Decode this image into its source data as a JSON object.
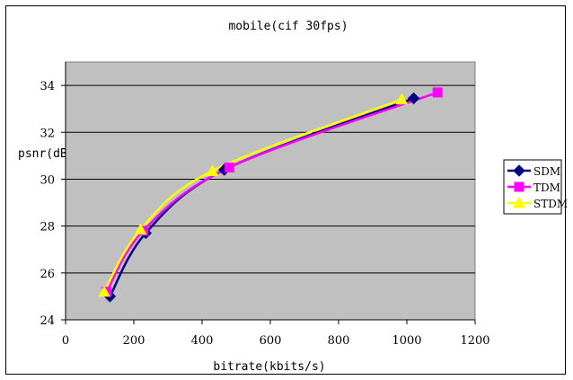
{
  "chart_data": {
    "type": "line",
    "title": "mobile(cif 30fps)",
    "xlabel": "bitrate(kbits/s)",
    "ylabel": "psnr(dB)",
    "xlim": [
      0,
      1200
    ],
    "ylim": [
      24,
      35
    ],
    "x_ticks": [
      0,
      200,
      400,
      600,
      800,
      1000,
      1200
    ],
    "y_ticks": [
      24,
      26,
      28,
      30,
      32,
      34
    ],
    "grid": "horizontal",
    "plot_background": "#c0c0c0",
    "legend_position": "right",
    "series": [
      {
        "name": "SDM",
        "color": "#000080",
        "marker": "diamond",
        "points": [
          [
            130,
            25.0
          ],
          [
            235,
            27.7
          ],
          [
            465,
            30.4
          ],
          [
            1020,
            33.45
          ]
        ]
      },
      {
        "name": "TDM",
        "color": "#ff00ff",
        "marker": "square",
        "points": [
          [
            120,
            25.2
          ],
          [
            228,
            27.8
          ],
          [
            480,
            30.5
          ],
          [
            1090,
            33.7
          ]
        ]
      },
      {
        "name": "STDM",
        "color": "#ffff00",
        "marker": "triangle",
        "points": [
          [
            113,
            25.2
          ],
          [
            220,
            27.85
          ],
          [
            430,
            30.35
          ],
          [
            985,
            33.4
          ]
        ]
      }
    ]
  }
}
